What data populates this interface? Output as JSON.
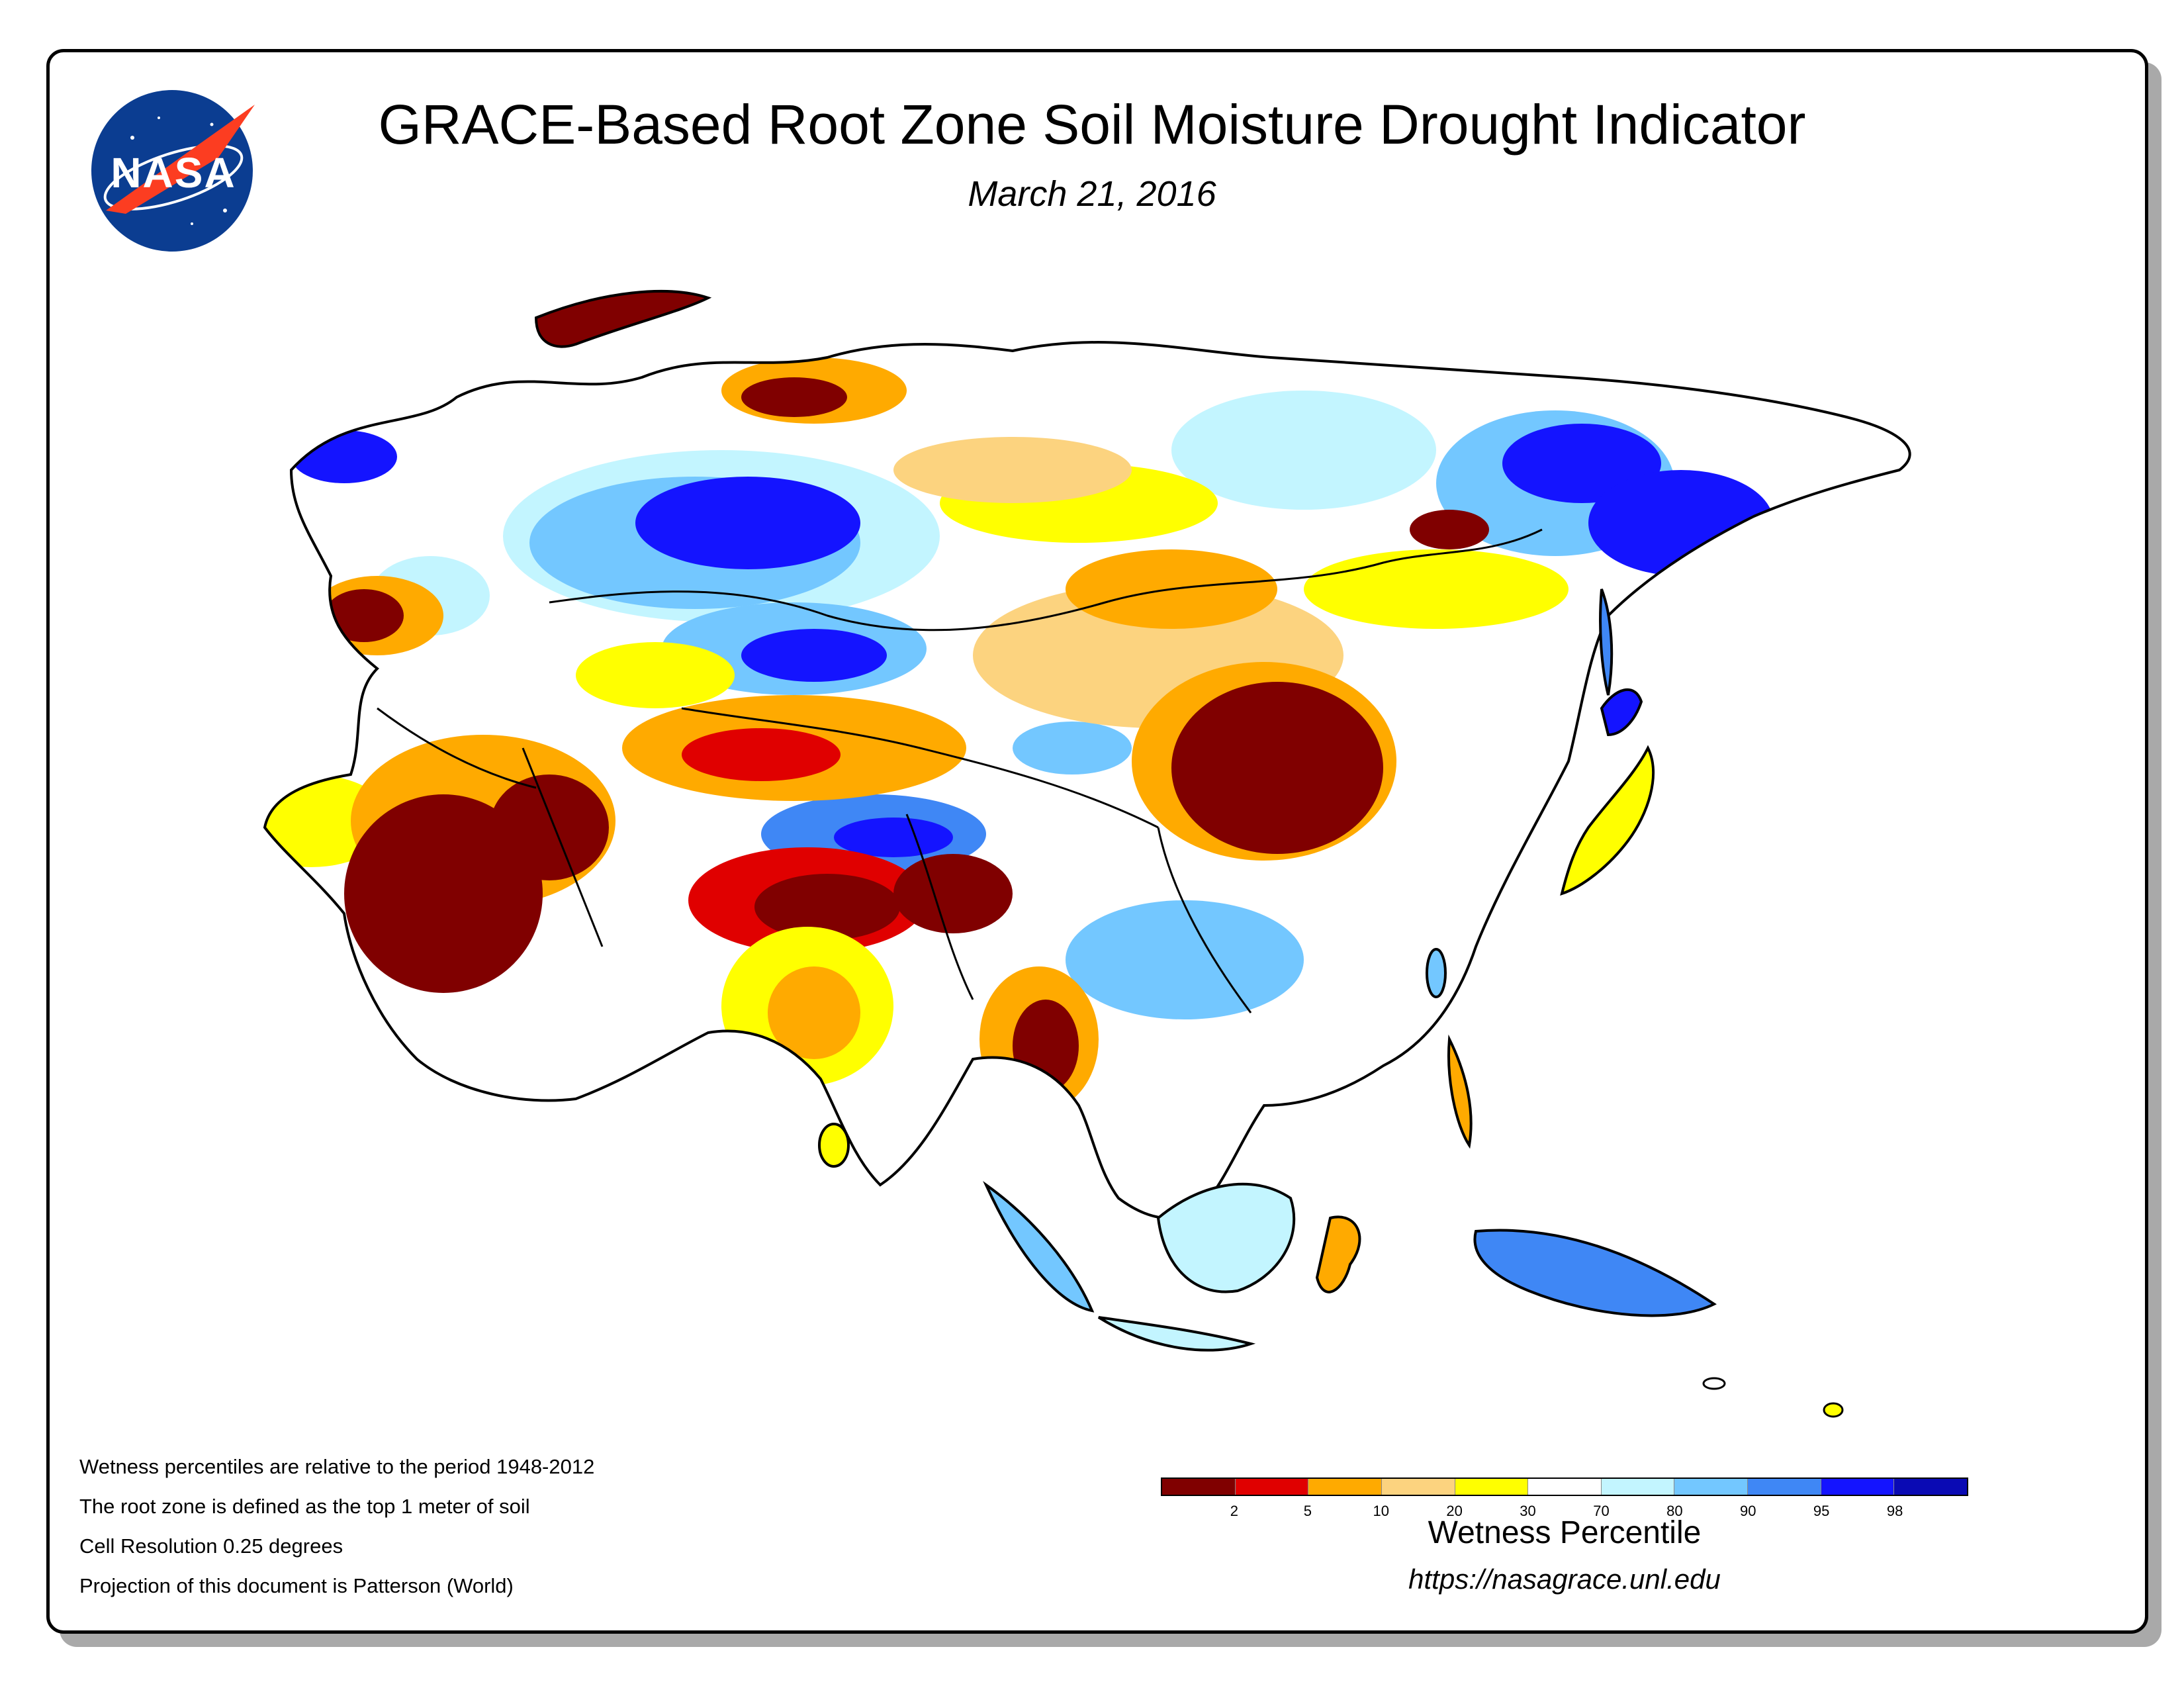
{
  "title": "GRACE-Based Root Zone Soil Moisture Drought Indicator",
  "date": "March 21, 2016",
  "logo": {
    "text": "NASA",
    "colors": {
      "circle": "#0b3d91",
      "chevron": "#fc3d21"
    }
  },
  "notes": [
    "Wetness percentiles are relative to the period 1948-2012",
    "The root zone is defined as the top 1 meter of soil",
    "Cell Resolution 0.25 degrees",
    "Projection of this document is Patterson (World)"
  ],
  "legend": {
    "title": "Wetness Percentile",
    "tick_labels": [
      "2",
      "5",
      "10",
      "20",
      "30",
      "70",
      "80",
      "90",
      "95",
      "98"
    ],
    "colors": [
      "#800000",
      "#e00000",
      "#ffaa00",
      "#fcd37f",
      "#ffff00",
      "#ffffff",
      "#c3f5ff",
      "#73c7ff",
      "#3f87f5",
      "#1414ff",
      "#0a0ab4"
    ]
  },
  "url": "https://nasagrace.unl.edu",
  "map": {
    "region": "Asia",
    "palette": {
      "deep-red": "#800000",
      "red": "#e00000",
      "orange": "#ffaa00",
      "tan": "#fcd37f",
      "yellow": "#ffff00",
      "white": "#ffffff",
      "light-cyan": "#c3f5ff",
      "sky-blue": "#73c7ff",
      "blue": "#3f87f5",
      "bright-blue": "#1414ff",
      "navy": "#0a0ab4"
    }
  }
}
